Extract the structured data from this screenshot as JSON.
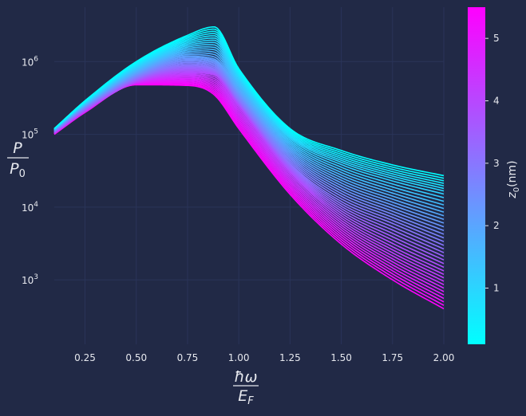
{
  "colors": {
    "background": "#212946",
    "grid": "#2A3459",
    "text": "#E6E8EE",
    "cmap_low": "#00FFFF",
    "cmap_high": "#FF00FF"
  },
  "chart_data": {
    "type": "line",
    "title": "",
    "xlabel": "ħω / E_F",
    "ylabel": "P / P0",
    "xscale": "linear",
    "yscale": "log",
    "xlim": [
      0.1,
      2.0
    ],
    "ylim": [
      130,
      5600000
    ],
    "grid": true,
    "xticks": [
      0.25,
      0.5,
      0.75,
      1.0,
      1.25,
      1.5,
      1.75,
      2.0
    ],
    "xtick_labels": [
      "0.25",
      "0.50",
      "0.75",
      "1.00",
      "1.25",
      "1.50",
      "1.75",
      "2.00"
    ],
    "yticks": [
      1000,
      10000,
      100000,
      1000000
    ],
    "ytick_base": "10",
    "ytick_exponents": [
      "3",
      "4",
      "5",
      "6"
    ],
    "colorbar": {
      "label": "z0(nm)",
      "range": [
        0.1,
        5.5
      ],
      "ticks": [
        1,
        2,
        3,
        4,
        5
      ],
      "tick_labels": [
        "1",
        "2",
        "3",
        "4",
        "5"
      ]
    },
    "series_description": "family of 40 curves, z0 from 0.1 to 5.5 nm",
    "series": [
      {
        "z0": 0.1,
        "x": [
          0.1,
          0.25,
          0.5,
          0.75,
          0.88,
          1.0,
          1.25,
          1.5,
          1.75,
          2.0
        ],
        "y": [
          120000,
          290000,
          1000000,
          2300000,
          3000000,
          800000,
          120000,
          60000,
          38000,
          27000
        ]
      },
      {
        "z0": 1.0,
        "x": [
          0.1,
          0.25,
          0.5,
          0.75,
          0.88,
          1.0,
          1.25,
          1.5,
          1.75,
          2.0
        ],
        "y": [
          118000,
          270000,
          850000,
          1700000,
          1900000,
          600000,
          90000,
          40000,
          24000,
          16000
        ]
      },
      {
        "z0": 2.0,
        "x": [
          0.1,
          0.25,
          0.5,
          0.75,
          0.88,
          1.0,
          1.25,
          1.5,
          1.75,
          2.0
        ],
        "y": [
          115000,
          250000,
          700000,
          1200000,
          1100000,
          400000,
          60000,
          22000,
          12000,
          7000
        ]
      },
      {
        "z0": 3.0,
        "x": [
          0.1,
          0.25,
          0.5,
          0.75,
          0.88,
          1.0,
          1.25,
          1.5,
          1.75,
          2.0
        ],
        "y": [
          110000,
          230000,
          600000,
          900000,
          800000,
          300000,
          40000,
          12000,
          6000,
          3000
        ]
      },
      {
        "z0": 4.0,
        "x": [
          0.1,
          0.25,
          0.5,
          0.75,
          0.88,
          1.0,
          1.25,
          1.5,
          1.75,
          2.0
        ],
        "y": [
          105000,
          210000,
          530000,
          700000,
          650000,
          250000,
          30000,
          7000,
          2800,
          1300
        ]
      },
      {
        "z0": 5.5,
        "x": [
          0.1,
          0.25,
          0.5,
          0.75,
          0.88,
          1.0,
          1.25,
          1.5,
          1.75,
          2.0
        ],
        "y": [
          100000,
          200000,
          480000,
          470000,
          350000,
          120000,
          15000,
          3100,
          1000,
          400
        ]
      }
    ]
  }
}
